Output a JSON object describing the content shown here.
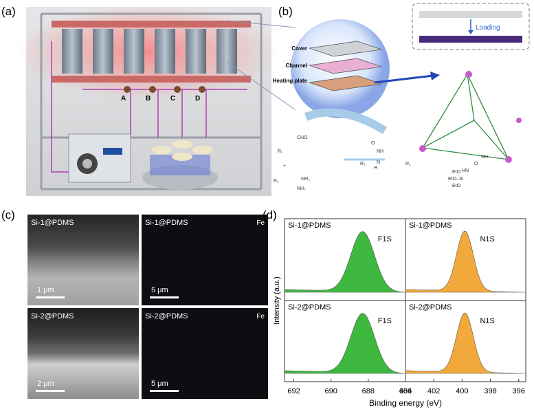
{
  "panel_labels": [
    "(a)",
    "(b)",
    "(c)",
    "(d)"
  ],
  "a": {
    "valves": [
      "A",
      "B",
      "C",
      "D"
    ]
  },
  "b": {
    "inset": "Loading",
    "layers": [
      "Cover",
      "Channel",
      "Heating plate"
    ],
    "chemistry": [
      "CHO",
      "R₁",
      "+",
      "R₂",
      "NH₂",
      "NH₂",
      "O",
      "NH",
      "N",
      "H",
      "R₁",
      "R₂",
      "EtO",
      "EtO–Si",
      "EtO",
      "HN",
      "O",
      "NH"
    ]
  },
  "c": {
    "images": [
      {
        "sample": "Si-1@PDMS",
        "scale": "1 μm"
      },
      {
        "sample": "Si-1@PDMS",
        "element": "Fe",
        "scale": "5 μm"
      },
      {
        "sample": "Si-2@PDMS",
        "scale": "2 μm"
      },
      {
        "sample": "Si-2@PDMS",
        "element": "Fe",
        "scale": "5 μm"
      }
    ]
  },
  "d": {
    "ylabel": "Intensity (a.u.)",
    "xlabel": "Binding energy (eV)",
    "columns": [
      {
        "xlim": [
          692.5,
          686
        ],
        "xticks": [
          692,
          690,
          688,
          686
        ]
      },
      {
        "xlim": [
          404,
          395.5
        ],
        "xticks": [
          404,
          402,
          400,
          398,
          396
        ]
      }
    ],
    "spectra": [
      {
        "sample": "Si-1@PDMS",
        "peak": "F1S",
        "color": "#3fb83f",
        "center": 688.3,
        "fwhm": 1.5
      },
      {
        "sample": "Si-1@PDMS",
        "peak": "N1S",
        "color": "#f2a93b",
        "center": 399.8,
        "fwhm": 1.4
      },
      {
        "sample": "Si-2@PDMS",
        "peak": "F1S",
        "color": "#3fb83f",
        "center": 688.3,
        "fwhm": 1.5
      },
      {
        "sample": "Si-2@PDMS",
        "peak": "N1S",
        "color": "#f2a93b",
        "center": 399.8,
        "fwhm": 1.4
      }
    ]
  }
}
